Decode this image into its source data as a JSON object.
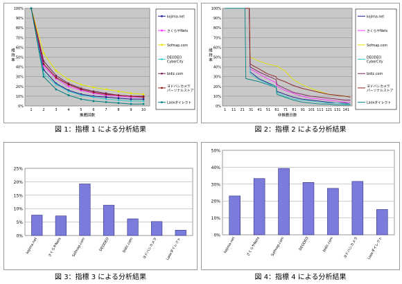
{
  "captions": {
    "c1": "図 1：指標 1 による分析結果",
    "c2": "図 2：指標 2 による分析結果",
    "c3": "図 3：指標 3 による分析結果",
    "c4": "図 4：指標 4 による分析結果"
  },
  "colors": {
    "kojima": "#1a1a8c",
    "sakura": "#ff33ff",
    "sofmap": "#e6e600",
    "deodeo": "#33cccc",
    "bidic": "#7a1f5c",
    "yodobashi": "#8b1a1a",
    "laox": "#008080",
    "bar": "#7b7bdc"
  },
  "chart_data": [
    {
      "type": "line",
      "xlabel": "推薦回数",
      "ylabel": "維持率",
      "ylim": [
        0,
        100
      ],
      "ytick_labels": [
        "0%",
        "10%",
        "20%",
        "30%",
        "40%",
        "50%",
        "60%",
        "70%",
        "80%",
        "90%",
        "100%"
      ],
      "x": [
        1,
        2,
        3,
        4,
        5,
        6,
        7,
        8,
        9,
        10
      ],
      "grid": true,
      "legend": "right",
      "series": [
        {
          "name": "kojima.net",
          "color_key": "kojima",
          "values": [
            100,
            37,
            23,
            16,
            12,
            10,
            9,
            8,
            7,
            7
          ]
        },
        {
          "name": "さくらやNets",
          "color_key": "sakura",
          "values": [
            100,
            41,
            28,
            20,
            16,
            13,
            11,
            10,
            9,
            9
          ]
        },
        {
          "name": "Sofmap.com",
          "color_key": "sofmap",
          "values": [
            100,
            54,
            36,
            27,
            22,
            19,
            17,
            15,
            13,
            12
          ]
        },
        {
          "name": "DEODEO CyberCity",
          "color_key": "deodeo",
          "values": [
            100,
            33,
            22,
            15,
            11,
            9,
            7,
            6,
            5,
            5
          ]
        },
        {
          "name": "bidic.com",
          "color_key": "bidic",
          "values": [
            100,
            46,
            31,
            23,
            18,
            15,
            13,
            11,
            10,
            10
          ]
        },
        {
          "name": "ヨドバシカメラ パーソナルストア",
          "color_key": "yodobashi",
          "values": [
            100,
            43,
            29,
            22,
            17,
            14,
            12,
            11,
            10,
            9
          ]
        },
        {
          "name": "Laoxダイレクト",
          "color_key": "laox",
          "values": [
            100,
            30,
            17,
            11,
            7,
            5,
            4,
            3,
            2,
            2
          ]
        }
      ]
    },
    {
      "type": "line",
      "xlabel": "非推薦日数",
      "ylabel": "維持率",
      "ylim": [
        0,
        100
      ],
      "ytick_labels": [
        "0%",
        "10%",
        "20%",
        "30%",
        "40%",
        "50%",
        "60%",
        "70%",
        "80%",
        "90%",
        "100%"
      ],
      "xtick_labels": [
        "1",
        "11",
        "21",
        "31",
        "41",
        "51",
        "61",
        "71",
        "81",
        "91",
        "101",
        "111",
        "121",
        "131",
        "141"
      ],
      "grid": true,
      "legend": "right",
      "series": [
        {
          "name": "kojima.net",
          "color_key": "kojima",
          "points": [
            [
              1,
              100
            ],
            [
              29,
              100
            ],
            [
              30,
              35
            ],
            [
              40,
              28
            ],
            [
              50,
              24
            ],
            [
              60,
              20
            ],
            [
              61,
              15
            ],
            [
              70,
              12
            ],
            [
              80,
              9
            ],
            [
              90,
              7
            ],
            [
              100,
              6
            ],
            [
              110,
              5
            ],
            [
              120,
              4
            ],
            [
              130,
              3
            ],
            [
              140,
              3
            ],
            [
              146,
              2
            ]
          ]
        },
        {
          "name": "さくらやNets",
          "color_key": "sakura",
          "points": [
            [
              1,
              100
            ],
            [
              29,
              100
            ],
            [
              30,
              38
            ],
            [
              40,
              33
            ],
            [
              50,
              28
            ],
            [
              60,
              24
            ],
            [
              61,
              20
            ],
            [
              70,
              16
            ],
            [
              80,
              13
            ],
            [
              90,
              10
            ],
            [
              100,
              8
            ],
            [
              110,
              7
            ],
            [
              120,
              6
            ],
            [
              130,
              5
            ],
            [
              140,
              4
            ],
            [
              146,
              4
            ]
          ]
        },
        {
          "name": "Sofmap.com",
          "color_key": "sofmap",
          "points": [
            [
              1,
              100
            ],
            [
              29,
              100
            ],
            [
              30,
              50
            ],
            [
              40,
              46
            ],
            [
              50,
              43
            ],
            [
              60,
              41
            ],
            [
              61,
              41
            ],
            [
              70,
              36
            ],
            [
              80,
              27
            ],
            [
              90,
              22
            ],
            [
              100,
              18
            ],
            [
              110,
              15
            ],
            [
              120,
              12
            ],
            [
              130,
              11
            ],
            [
              140,
              10
            ],
            [
              146,
              9
            ]
          ]
        },
        {
          "name": "DEODEO CyberCity",
          "color_key": "deodeo",
          "points": [
            [
              1,
              100
            ],
            [
              29,
              100
            ],
            [
              30,
              33
            ],
            [
              40,
              27
            ],
            [
              50,
              23
            ],
            [
              60,
              20
            ],
            [
              61,
              14
            ],
            [
              70,
              10
            ],
            [
              80,
              7
            ],
            [
              90,
              6
            ],
            [
              100,
              5
            ],
            [
              110,
              4
            ],
            [
              120,
              3
            ],
            [
              130,
              3
            ],
            [
              140,
              2
            ],
            [
              146,
              2
            ]
          ]
        },
        {
          "name": "bidic.com",
          "color_key": "bidic",
          "points": [
            [
              1,
              100
            ],
            [
              29,
              100
            ],
            [
              30,
              40
            ],
            [
              40,
              35
            ],
            [
              50,
              31
            ],
            [
              60,
              27
            ],
            [
              61,
              22
            ],
            [
              70,
              18
            ],
            [
              80,
              14
            ],
            [
              90,
              12
            ],
            [
              100,
              10
            ],
            [
              110,
              9
            ],
            [
              120,
              8
            ],
            [
              130,
              7
            ],
            [
              140,
              6
            ],
            [
              146,
              6
            ]
          ]
        },
        {
          "name": "ヨドバシカメラ パーソナルストア",
          "color_key": "yodobashi",
          "points": [
            [
              1,
              100
            ],
            [
              29,
              100
            ],
            [
              30,
              43
            ],
            [
              40,
              38
            ],
            [
              50,
              33
            ],
            [
              60,
              30
            ],
            [
              61,
              28
            ],
            [
              70,
              25
            ],
            [
              80,
              21
            ],
            [
              90,
              18
            ],
            [
              100,
              16
            ],
            [
              110,
              14
            ],
            [
              120,
              12
            ],
            [
              130,
              11
            ],
            [
              140,
              10
            ],
            [
              146,
              9
            ]
          ]
        },
        {
          "name": "Laoxダイレクト",
          "color_key": "laox",
          "points": [
            [
              1,
              100
            ],
            [
              24,
              100
            ],
            [
              25,
              28
            ],
            [
              40,
              25
            ],
            [
              50,
              22
            ],
            [
              60,
              19
            ],
            [
              61,
              12
            ],
            [
              70,
              9
            ],
            [
              80,
              6
            ],
            [
              90,
              4
            ],
            [
              100,
              3
            ],
            [
              110,
              2
            ],
            [
              120,
              2
            ],
            [
              130,
              1
            ],
            [
              140,
              1
            ],
            [
              146,
              1
            ]
          ]
        }
      ]
    },
    {
      "type": "bar",
      "categories": [
        "kojima.net",
        "さくらやNets",
        "Sofmap.com",
        "DEODEO",
        "bidic.com",
        "ヨドバシカメラ",
        "Laoxダイレクト"
      ],
      "values": [
        7.6,
        7.3,
        19.2,
        11.3,
        6.2,
        5.2,
        2.0
      ],
      "ylim": [
        0,
        25
      ],
      "ytick_labels": [
        "0%",
        "5%",
        "10%",
        "15%",
        "20%",
        "25%"
      ],
      "grid": true
    },
    {
      "type": "bar",
      "categories": [
        "kojima.net",
        "さくらやNets",
        "Sofmap.com",
        "DEODEO",
        "bidic.com",
        "ヨドバシカメラ",
        "Laoxダイレクト"
      ],
      "values": [
        23.0,
        33.3,
        39.3,
        31.0,
        27.5,
        31.6,
        15.0
      ],
      "ylim": [
        0,
        50
      ],
      "ytick_labels": [
        "0%",
        "10%",
        "20%",
        "30%",
        "40%",
        "50%"
      ],
      "grid": true
    }
  ]
}
